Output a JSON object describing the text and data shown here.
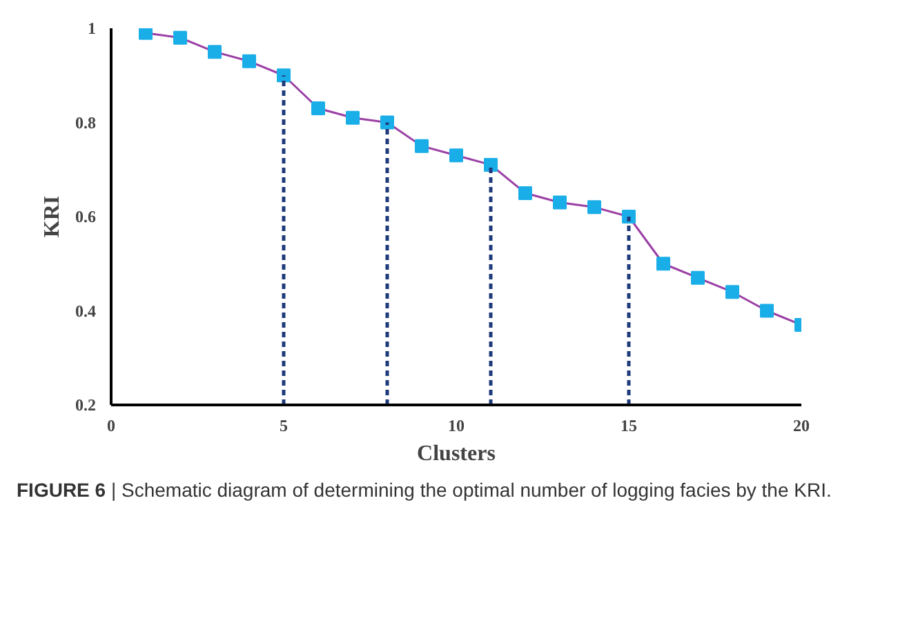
{
  "chart_data": {
    "type": "line",
    "xlabel": "Clusters",
    "ylabel": "KRI",
    "x": [
      1,
      2,
      3,
      4,
      5,
      6,
      7,
      8,
      9,
      10,
      11,
      12,
      13,
      14,
      15,
      16,
      17,
      18,
      19,
      20
    ],
    "series": [
      {
        "color": "#1aaee8",
        "values": [
          0.99,
          0.98,
          0.95,
          0.93,
          0.9,
          0.83,
          0.81,
          0.8,
          0.75,
          0.73,
          0.71,
          0.65,
          0.63,
          0.62,
          0.6,
          0.5,
          0.47,
          0.44,
          0.4,
          0.37
        ]
      }
    ],
    "marker": "square",
    "xlim": [
      0,
      20
    ],
    "ylim": [
      0.2,
      1
    ],
    "xticks": [
      0,
      5,
      10,
      15,
      20
    ],
    "yticks": [
      {
        "value": 0.2,
        "label": "0.2"
      },
      {
        "value": 0.4,
        "label": "0.4"
      },
      {
        "value": 0.6,
        "label": "0.6"
      },
      {
        "value": 0.8,
        "label": "0.8"
      },
      {
        "value": 1,
        "label": "1"
      }
    ],
    "ref_lines": [
      {
        "axis": "x",
        "value": 5,
        "color": "#1f3a7a",
        "line_style": "dashed"
      },
      {
        "axis": "x",
        "value": 8,
        "color": "#1f3a7a",
        "line_style": "dashed"
      },
      {
        "axis": "x",
        "value": 11,
        "color": "#1f3a7a",
        "line_style": "dashed"
      },
      {
        "axis": "x",
        "value": 15,
        "color": "#1f3a7a",
        "line_style": "dashed"
      }
    ],
    "grid": false,
    "annotations": [
      "FIGURE 6 | Schematic diagram of determining the optimal number of logging facies by the KRI."
    ]
  }
}
